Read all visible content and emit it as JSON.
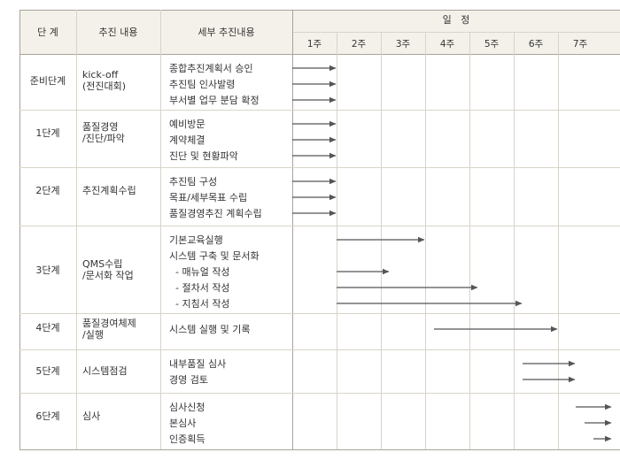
{
  "header": {
    "stage": "단 계",
    "task": "추진 내용",
    "detail": "세부 추진내용",
    "schedule": "일   정",
    "weeks": [
      "1주",
      "2주",
      "3주",
      "4주",
      "5주",
      "6주",
      "7주"
    ]
  },
  "rows": [
    {
      "stage": "준비단계",
      "task": [
        "kick-off",
        "(전진대회)"
      ],
      "details": [
        "종합추진계획서 승인",
        "추진팀 인사발령",
        "부서별 업무 분담 확정"
      ]
    },
    {
      "stage": "1단계",
      "task": [
        "품질경영",
        "/진단/파악"
      ],
      "details": [
        "예비방문",
        "계약체결",
        "진단 및 현황파악"
      ]
    },
    {
      "stage": "2단계",
      "task": [
        "추진계획수립"
      ],
      "details": [
        "추진팀 구성",
        "목표/세부목표 수립",
        "품질경영추진 계획수립"
      ]
    },
    {
      "stage": "3단계",
      "task": [
        "QMS수립",
        "/문서화 작업"
      ],
      "details": [
        "기본교육실행",
        "시스템 구축 및 문서화",
        "  - 매뉴얼 작성",
        "  - 절차서 작성",
        "  - 지침서 작성"
      ]
    },
    {
      "stage": "4단계",
      "task": [
        "품질경여체제",
        "/실행"
      ],
      "details": [
        "시스템 실행 및 기록"
      ]
    },
    {
      "stage": "5단계",
      "task": [
        "시스템점검"
      ],
      "details": [
        "내부품질 심사",
        "경영 검토"
      ]
    },
    {
      "stage": "6단계",
      "task": [
        "심사"
      ],
      "details": [
        "심사신청",
        "본심사",
        "인증획득"
      ]
    }
  ],
  "bars": [
    {
      "row": 0,
      "line": 0,
      "start_week": 1,
      "end_week": 1
    },
    {
      "row": 0,
      "line": 1,
      "start_week": 1,
      "end_week": 1
    },
    {
      "row": 0,
      "line": 2,
      "start_week": 1,
      "end_week": 1
    },
    {
      "row": 1,
      "line": 0,
      "start_week": 1,
      "end_week": 1
    },
    {
      "row": 1,
      "line": 1,
      "start_week": 1,
      "end_week": 1
    },
    {
      "row": 1,
      "line": 2,
      "start_week": 1,
      "end_week": 1
    },
    {
      "row": 2,
      "line": 0,
      "start_week": 1,
      "end_week": 1
    },
    {
      "row": 2,
      "line": 1,
      "start_week": 1,
      "end_week": 1
    },
    {
      "row": 2,
      "line": 2,
      "start_week": 1,
      "end_week": 1
    },
    {
      "row": 3,
      "line": 0,
      "start_week": 2,
      "end_week": 3
    },
    {
      "row": 3,
      "line": 2,
      "start_week": 2,
      "end_week": 2.2
    },
    {
      "row": 3,
      "line": 3,
      "start_week": 2,
      "end_week": 4.2
    },
    {
      "row": 3,
      "line": 4,
      "start_week": 2,
      "end_week": 5.2
    },
    {
      "row": 4,
      "line": 0,
      "start_week": 4.2,
      "end_week": 6
    },
    {
      "row": 5,
      "line": 0,
      "start_week": 6.2,
      "end_week": 6.4
    },
    {
      "row": 5,
      "line": 1,
      "start_week": 6.2,
      "end_week": 6.4
    },
    {
      "row": 6,
      "line": 0,
      "start_week": 7.4,
      "end_week": 8.1
    },
    {
      "row": 6,
      "line": 1,
      "start_week": 7.6,
      "end_week": 8.1
    },
    {
      "row": 6,
      "line": 2,
      "start_week": 7.8,
      "end_week": 8.1
    }
  ],
  "colors": {
    "grid": "#d9d4c8",
    "border": "#a9a39a",
    "header_bg": "#f4f1ea",
    "arrow": "#555555"
  }
}
